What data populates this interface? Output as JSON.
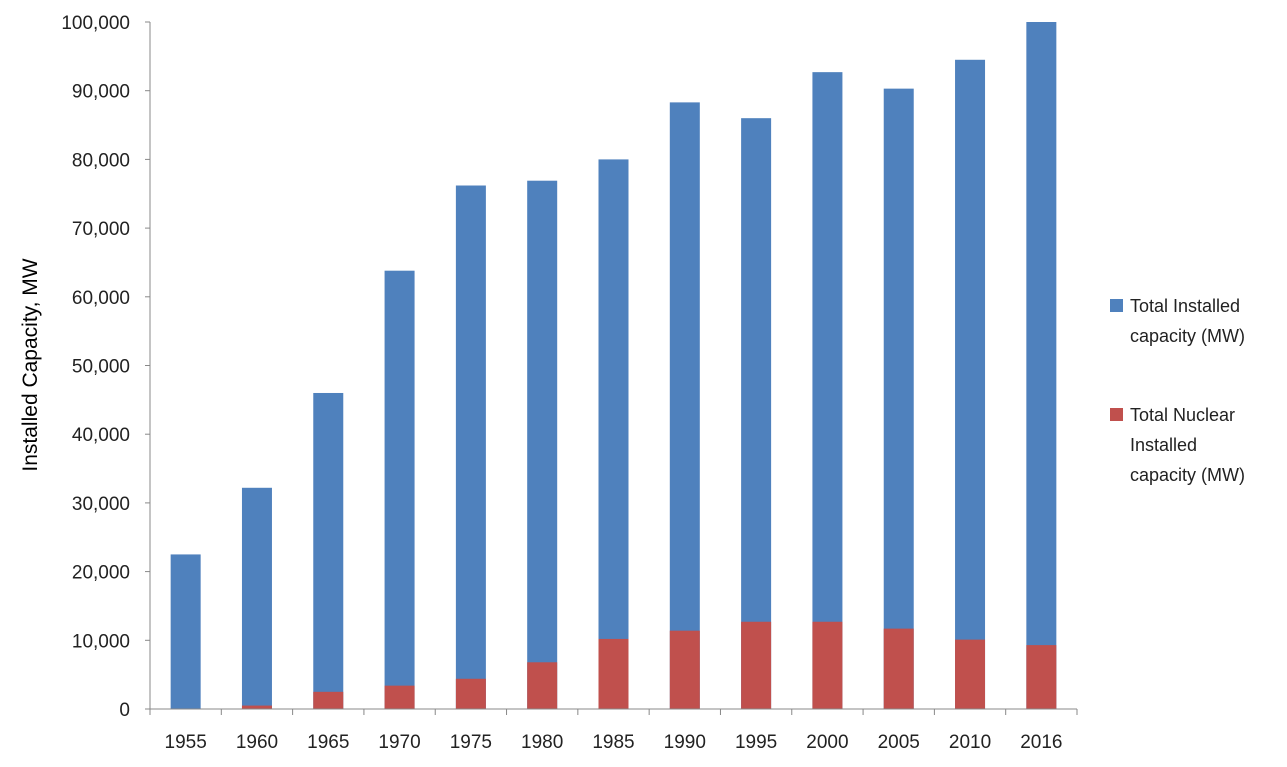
{
  "chart_data": {
    "type": "bar",
    "title": "",
    "xlabel": "",
    "ylabel": "Installed Capacity, MW",
    "ylim": [
      0,
      100000
    ],
    "yticks": [
      0,
      10000,
      20000,
      30000,
      40000,
      50000,
      60000,
      70000,
      80000,
      90000,
      100000
    ],
    "ytick_labels": [
      "0",
      "10,000",
      "20,000",
      "30,000",
      "40,000",
      "50,000",
      "60,000",
      "70,000",
      "80,000",
      "90,000",
      "100,000"
    ],
    "grid": false,
    "legend_position": "right",
    "categories": [
      "1955",
      "1960",
      "1965",
      "1970",
      "1975",
      "1980",
      "1985",
      "1990",
      "1995",
      "2000",
      "2005",
      "2010",
      "2016"
    ],
    "series": [
      {
        "name": "Total Installed capacity (MW)",
        "legend_lines": [
          "Total Installed",
          "capacity (MW)"
        ],
        "color": "#4f81bd",
        "values": [
          22500,
          32200,
          46000,
          63800,
          76200,
          76900,
          80000,
          88300,
          86000,
          92700,
          90300,
          94500,
          100000
        ]
      },
      {
        "name": "Total Nuclear Installed capacity (MW)",
        "legend_lines": [
          "Total Nuclear",
          "Installed",
          "capacity (MW)"
        ],
        "color": "#c0504d",
        "values": [
          0,
          500,
          2500,
          3400,
          4400,
          6800,
          10200,
          11400,
          12700,
          12700,
          11700,
          10100,
          9300
        ]
      }
    ]
  }
}
